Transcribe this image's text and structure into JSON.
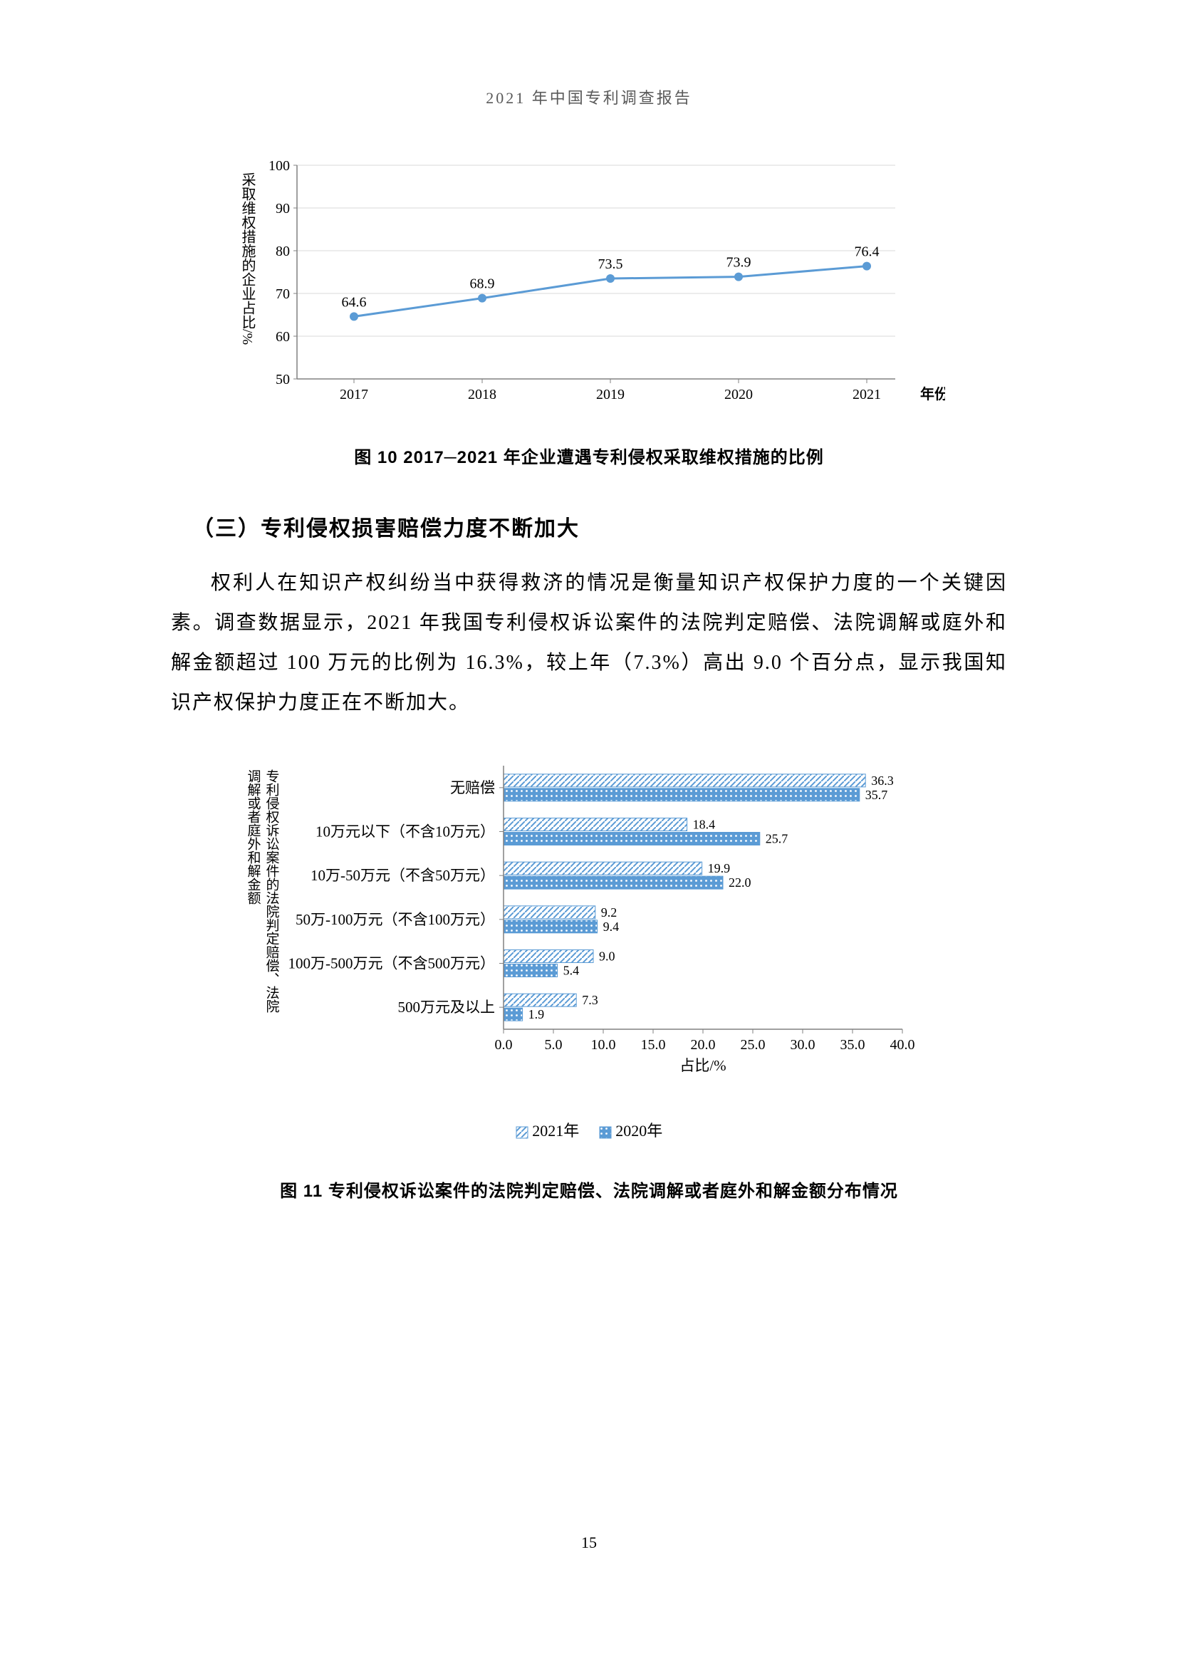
{
  "header": "2021 年中国专利调查报告",
  "page_number": "15",
  "chart1": {
    "type": "line",
    "x_labels": [
      "2017",
      "2018",
      "2019",
      "2020",
      "2021"
    ],
    "values": [
      64.6,
      68.9,
      73.5,
      73.9,
      76.4
    ],
    "ylim": [
      50,
      100
    ],
    "yticks": [
      50,
      60,
      70,
      80,
      90,
      100
    ],
    "x_axis_label": "年份",
    "y_axis_label": "采取维权措施的企业占比/%",
    "line_color": "#5b9bd5",
    "marker_color": "#5b9bd5",
    "grid_color": "#d9d9d9",
    "axis_color": "#808080",
    "data_label_fontsize": 20,
    "tick_fontsize": 20,
    "caption": "图 10   2017─2021 年企业遭遇专利侵权采取维权措施的比例"
  },
  "section_heading": "（三）专利侵权损害赔偿力度不断加大",
  "body_text": "权利人在知识产权纠纷当中获得救济的情况是衡量知识产权保护力度的一个关键因素。调查数据显示，2021 年我国专利侵权诉讼案件的法院判定赔偿、法院调解或庭外和解金额超过 100 万元的比例为 16.3%，较上年（7.3%）高出 9.0 个百分点，显示我国知识产权保护力度正在不断加大。",
  "chart2": {
    "type": "bar",
    "y_axis_label_lines": [
      "专利侵权诉讼案件的法院判定赔偿、法院",
      "调解或者庭外和解金额"
    ],
    "categories": [
      "无赔偿",
      "10万元以下（不含10万元）",
      "10万-50万元（不含50万元）",
      "50万-100万元（不含100万元）",
      "100万-500万元（不含500万元）",
      "500万元及以上"
    ],
    "series": [
      {
        "name": "2021年",
        "color": "#5b9bd5",
        "pattern": "diag-ltr",
        "values": [
          36.3,
          18.4,
          19.9,
          9.2,
          9.0,
          7.3
        ]
      },
      {
        "name": "2020年",
        "color": "#5b9bd5",
        "pattern": "dots",
        "values": [
          35.7,
          25.7,
          22.0,
          9.4,
          5.4,
          1.9
        ]
      }
    ],
    "xlim": [
      0,
      40
    ],
    "xticks": [
      0.0,
      5.0,
      10.0,
      15.0,
      20.0,
      25.0,
      30.0,
      35.0,
      40.0
    ],
    "x_axis_label": "占比/%",
    "caption": "图 11   专利侵权诉讼案件的法院判定赔偿、法院调解或者庭外和解金额分布情况",
    "axis_color": "#808080",
    "tick_fontsize": 20,
    "data_label_fontsize": 18,
    "legend_prefix_2021": "2021年",
    "legend_prefix_2020": "2020年"
  }
}
